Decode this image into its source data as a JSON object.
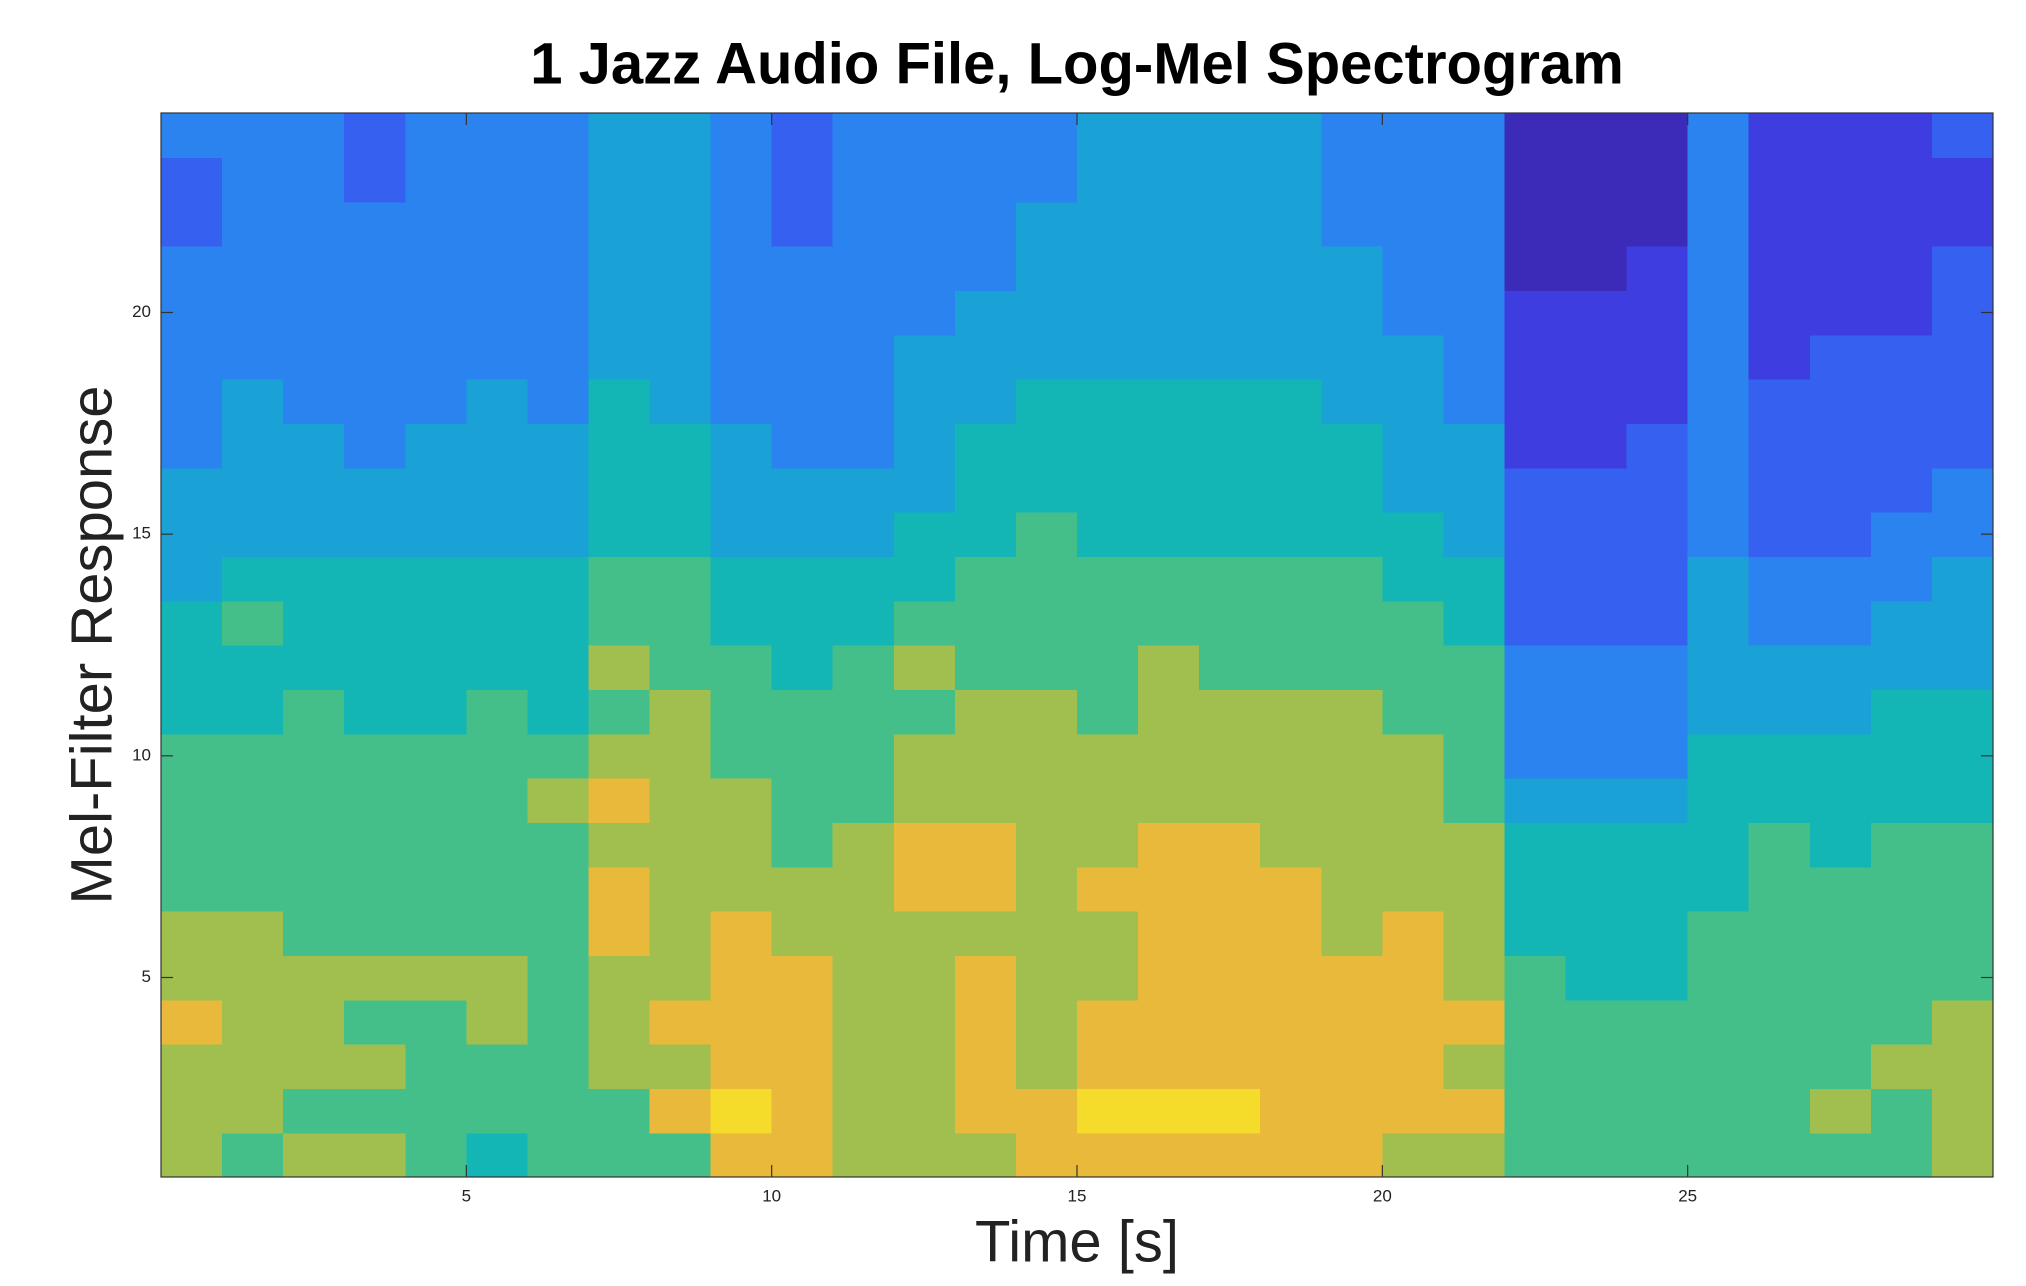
{
  "chart_data": {
    "type": "heatmap",
    "title": "1 Jazz Audio File, Log-Mel Spectrogram",
    "x_label": "Time [s]",
    "y_label": "Mel-Filter Response",
    "xlim": [
      0,
      30
    ],
    "ylim": [
      0.5,
      24.5
    ],
    "xticks": [
      5,
      10,
      15,
      20,
      25
    ],
    "yticks": [
      5,
      10,
      15,
      20
    ],
    "clim": [
      0,
      9
    ],
    "colormap": [
      "#3b2bb8",
      "#3e3ee0",
      "#3560f0",
      "#2a83ee",
      "#1aa2d6",
      "#14b5b5",
      "#45bf8a",
      "#a1bf4f",
      "#e8b93a",
      "#f5dc2a"
    ],
    "x": [
      0.5,
      1.5,
      2.5,
      3.5,
      4.5,
      5.5,
      6.5,
      7.5,
      8.5,
      9.5,
      10.5,
      11.5,
      12.5,
      13.5,
      14.5,
      15.5,
      16.5,
      17.5,
      18.5,
      19.5,
      20.5,
      21.5,
      22.5,
      23.5,
      24.5,
      25.5,
      26.5,
      27.5,
      28.5,
      29.5
    ],
    "y": [
      1,
      2,
      3,
      4,
      5,
      6,
      7,
      8,
      9,
      10,
      11,
      12,
      13,
      14,
      15,
      16,
      17,
      18,
      19,
      20,
      21,
      22,
      23,
      24
    ],
    "values": [
      [
        7,
        6,
        7,
        7,
        6,
        5,
        6,
        6,
        6,
        8,
        8,
        7,
        7,
        7,
        8,
        8,
        8,
        8,
        8,
        8,
        7,
        7,
        6,
        6,
        6,
        6,
        6,
        6,
        6,
        7
      ],
      [
        7,
        7,
        6,
        6,
        6,
        6,
        6,
        6,
        8,
        9,
        8,
        7,
        7,
        8,
        8,
        9,
        9,
        9,
        8,
        8,
        8,
        8,
        6,
        6,
        6,
        6,
        6,
        7,
        6,
        7
      ],
      [
        7,
        7,
        7,
        7,
        6,
        6,
        6,
        7,
        7,
        8,
        8,
        7,
        7,
        8,
        7,
        8,
        8,
        8,
        8,
        8,
        8,
        7,
        6,
        6,
        6,
        6,
        6,
        6,
        7,
        7
      ],
      [
        8,
        7,
        7,
        6,
        6,
        7,
        6,
        7,
        8,
        8,
        8,
        7,
        7,
        8,
        7,
        8,
        8,
        8,
        8,
        8,
        8,
        8,
        6,
        6,
        6,
        6,
        6,
        6,
        6,
        7
      ],
      [
        7,
        7,
        7,
        7,
        7,
        7,
        6,
        7,
        7,
        8,
        8,
        7,
        7,
        8,
        7,
        7,
        8,
        8,
        8,
        8,
        8,
        7,
        6,
        5,
        5,
        6,
        6,
        6,
        6,
        6
      ],
      [
        7,
        7,
        6,
        6,
        6,
        6,
        6,
        8,
        7,
        8,
        7,
        7,
        7,
        7,
        7,
        7,
        8,
        8,
        8,
        7,
        8,
        7,
        5,
        5,
        5,
        6,
        6,
        6,
        6,
        6
      ],
      [
        6,
        6,
        6,
        6,
        6,
        6,
        6,
        8,
        7,
        7,
        7,
        7,
        8,
        8,
        7,
        8,
        8,
        8,
        8,
        7,
        7,
        7,
        5,
        5,
        5,
        5,
        6,
        6,
        6,
        6
      ],
      [
        6,
        6,
        6,
        6,
        6,
        6,
        6,
        7,
        7,
        7,
        6,
        7,
        8,
        8,
        7,
        7,
        8,
        8,
        7,
        7,
        7,
        7,
        5,
        5,
        5,
        5,
        6,
        5,
        6,
        6
      ],
      [
        6,
        6,
        6,
        6,
        6,
        6,
        7,
        8,
        7,
        7,
        6,
        6,
        7,
        7,
        7,
        7,
        7,
        7,
        7,
        7,
        7,
        6,
        4,
        4,
        4,
        5,
        5,
        5,
        5,
        5
      ],
      [
        6,
        6,
        6,
        6,
        6,
        6,
        6,
        7,
        7,
        6,
        6,
        6,
        7,
        7,
        7,
        7,
        7,
        7,
        7,
        7,
        7,
        6,
        3,
        3,
        3,
        5,
        5,
        5,
        5,
        5
      ],
      [
        5,
        5,
        6,
        5,
        5,
        6,
        5,
        6,
        7,
        6,
        6,
        6,
        6,
        7,
        7,
        6,
        7,
        7,
        7,
        7,
        6,
        6,
        3,
        3,
        3,
        4,
        4,
        4,
        5,
        5
      ],
      [
        5,
        5,
        5,
        5,
        5,
        5,
        5,
        7,
        6,
        6,
        5,
        6,
        7,
        6,
        6,
        6,
        7,
        6,
        6,
        6,
        6,
        6,
        3,
        3,
        3,
        4,
        4,
        4,
        4,
        4
      ],
      [
        5,
        6,
        5,
        5,
        5,
        5,
        5,
        6,
        6,
        5,
        5,
        5,
        6,
        6,
        6,
        6,
        6,
        6,
        6,
        6,
        6,
        5,
        2,
        2,
        2,
        4,
        3,
        3,
        4,
        4
      ],
      [
        4,
        5,
        5,
        5,
        5,
        5,
        5,
        6,
        6,
        5,
        5,
        5,
        5,
        6,
        6,
        6,
        6,
        6,
        6,
        6,
        5,
        5,
        2,
        2,
        2,
        4,
        3,
        3,
        3,
        4
      ],
      [
        4,
        4,
        4,
        4,
        4,
        4,
        4,
        5,
        5,
        4,
        4,
        4,
        5,
        5,
        6,
        5,
        5,
        5,
        5,
        5,
        5,
        4,
        2,
        2,
        2,
        3,
        2,
        2,
        3,
        3
      ],
      [
        4,
        4,
        4,
        4,
        4,
        4,
        4,
        5,
        5,
        4,
        4,
        4,
        4,
        5,
        5,
        5,
        5,
        5,
        5,
        5,
        4,
        4,
        2,
        2,
        2,
        3,
        2,
        2,
        2,
        3
      ],
      [
        3,
        4,
        4,
        3,
        4,
        4,
        4,
        5,
        5,
        4,
        3,
        3,
        4,
        5,
        5,
        5,
        5,
        5,
        5,
        5,
        4,
        4,
        1,
        1,
        2,
        3,
        2,
        2,
        2,
        2
      ],
      [
        3,
        4,
        3,
        3,
        3,
        4,
        3,
        5,
        4,
        3,
        3,
        3,
        4,
        4,
        5,
        5,
        5,
        5,
        5,
        4,
        4,
        3,
        1,
        1,
        1,
        3,
        2,
        2,
        2,
        2
      ],
      [
        3,
        3,
        3,
        3,
        3,
        3,
        3,
        4,
        4,
        3,
        3,
        3,
        4,
        4,
        4,
        4,
        4,
        4,
        4,
        4,
        4,
        3,
        1,
        1,
        1,
        3,
        1,
        2,
        2,
        2
      ],
      [
        3,
        3,
        3,
        3,
        3,
        3,
        3,
        4,
        4,
        3,
        3,
        3,
        3,
        4,
        4,
        4,
        4,
        4,
        4,
        4,
        3,
        3,
        1,
        1,
        1,
        3,
        1,
        1,
        1,
        2
      ],
      [
        3,
        3,
        3,
        3,
        3,
        3,
        3,
        4,
        4,
        3,
        3,
        3,
        3,
        3,
        4,
        4,
        4,
        4,
        4,
        4,
        3,
        3,
        0,
        0,
        1,
        3,
        1,
        1,
        1,
        2
      ],
      [
        2,
        3,
        3,
        3,
        3,
        3,
        3,
        4,
        4,
        3,
        2,
        3,
        3,
        3,
        4,
        4,
        4,
        4,
        4,
        3,
        3,
        3,
        0,
        0,
        0,
        3,
        1,
        1,
        1,
        1
      ],
      [
        2,
        3,
        3,
        2,
        3,
        3,
        3,
        4,
        4,
        3,
        2,
        3,
        3,
        3,
        3,
        4,
        4,
        4,
        4,
        3,
        3,
        3,
        0,
        0,
        0,
        3,
        1,
        1,
        1,
        1
      ],
      [
        3,
        3,
        3,
        2,
        3,
        3,
        3,
        4,
        4,
        3,
        2,
        3,
        3,
        3,
        3,
        4,
        4,
        4,
        4,
        3,
        3,
        3,
        0,
        0,
        0,
        3,
        1,
        1,
        1,
        2
      ]
    ]
  }
}
